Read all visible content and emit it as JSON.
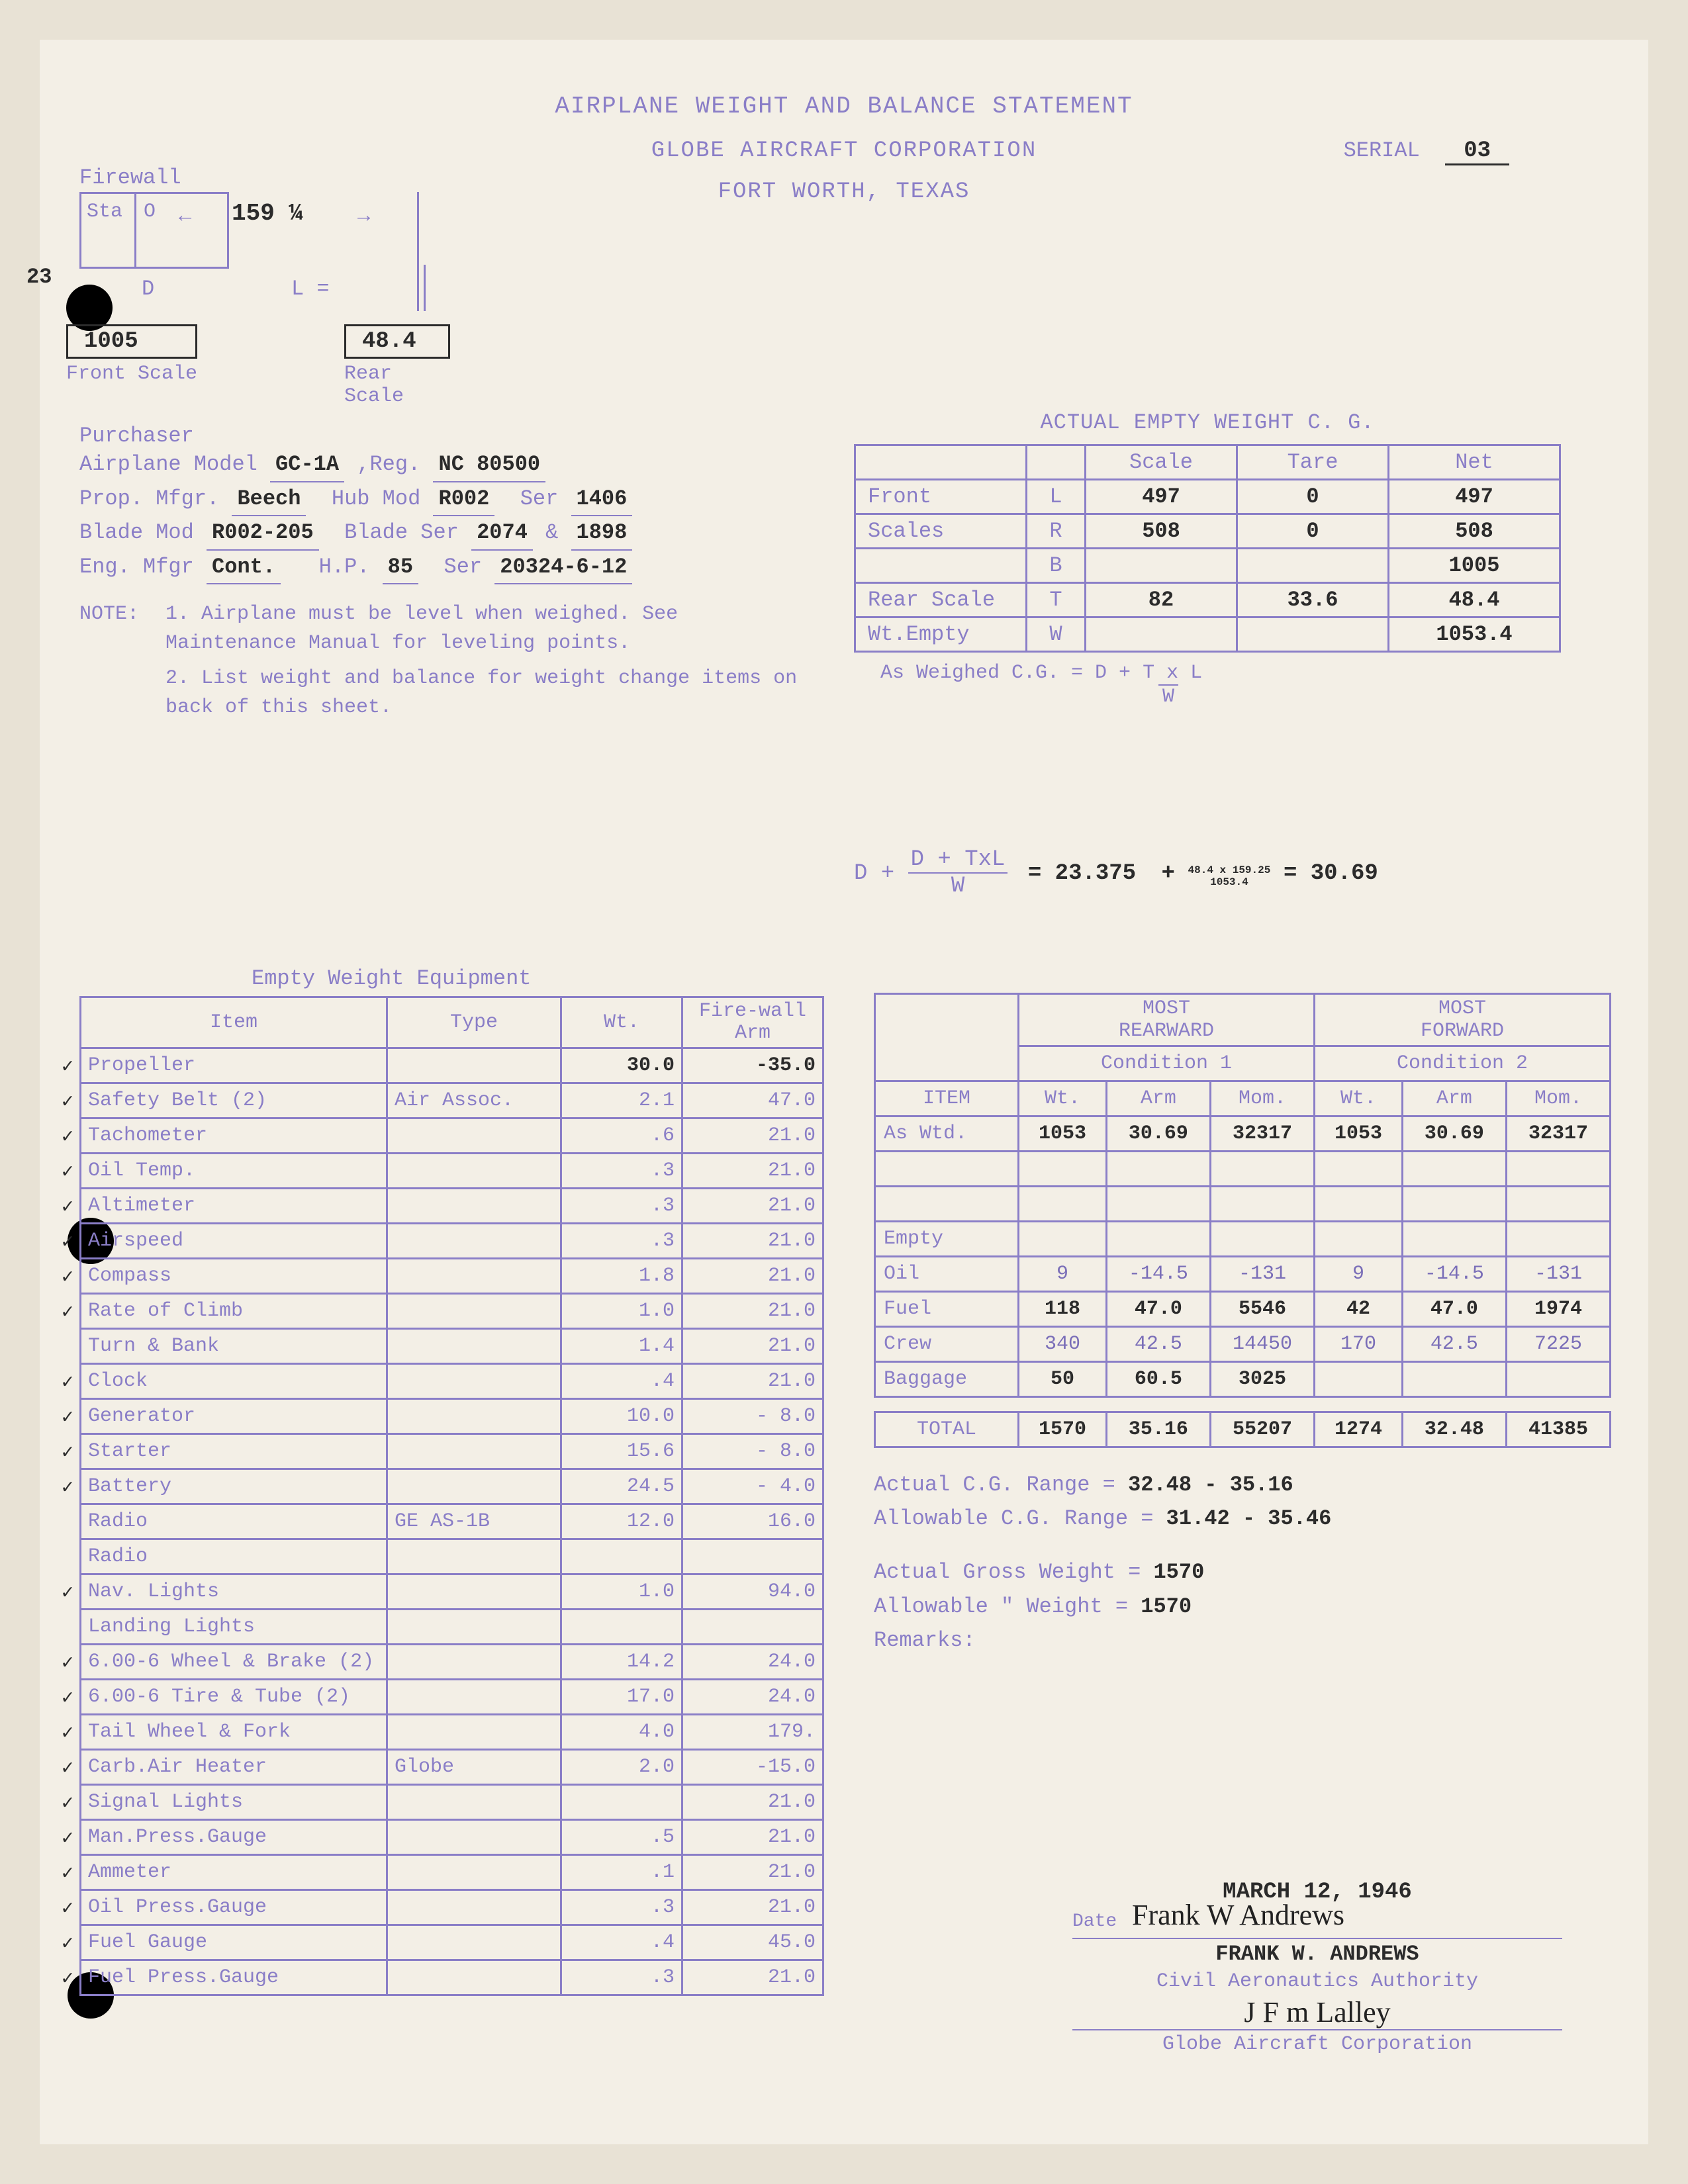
{
  "colors": {
    "paper": "#f3efe6",
    "bg": "#e8e2d5",
    "mimeo": "#8a7ec7",
    "typed": "#2b2b2b",
    "table_border": "#8a7ec7"
  },
  "typography": {
    "body_fontsize": 32,
    "title_fontsize": 36
  },
  "header": {
    "title": "AIRPLANE WEIGHT AND BALANCE STATEMENT",
    "company": "GLOBE AIRCRAFT CORPORATION",
    "location": "FORT WORTH, TEXAS",
    "serial_label": "SERIAL",
    "serial": "03"
  },
  "diagram": {
    "firewall": "Firewall",
    "sta_label": "Sta",
    "sta_o": "O",
    "d_label": "D",
    "l_label": "L =",
    "arrow_val": "159 ¼",
    "front_scale_label": "Front Scale",
    "front_scale": "1005",
    "rear_scale_label": "Rear Scale",
    "rear_scale": "48.4",
    "twentythree": "23"
  },
  "purchaser": {
    "purchaser_label": "Purchaser",
    "model_label": "Airplane Model",
    "model": "GC-1A",
    "reg_label": ",Reg.",
    "reg": "NC 80500",
    "prop_mfgr_label": "Prop. Mfgr.",
    "prop_mfgr": "Beech",
    "hub_mod_label": "Hub Mod",
    "hub_mod": "R002",
    "ser_label": "Ser",
    "prop_ser": "1406",
    "blade_mod_label": "Blade Mod",
    "blade_mod": "R002-205",
    "blade_ser_label": "Blade Ser",
    "blade_ser1": "2074",
    "blade_amp": "&",
    "blade_ser2": "1898",
    "eng_mfgr_label": "Eng. Mfgr",
    "eng_mfgr": "Cont.",
    "hp_label": "H.P.",
    "hp": "85",
    "eng_ser_label": "Ser",
    "eng_ser": "20324-6-12"
  },
  "notes": {
    "note_label": "NOTE:",
    "n1": "1.  Airplane must be level when weighed. See Maintenance Manual for leveling points.",
    "n2": "2.  List weight and balance for weight change items on back of this sheet."
  },
  "cg_table": {
    "title": "ACTUAL EMPTY WEIGHT C. G.",
    "col_scale": "Scale",
    "col_tare": "Tare",
    "col_net": "Net",
    "rows": [
      {
        "label": "Front",
        "side": "L",
        "scale": "497",
        "tare": "0",
        "net": "497"
      },
      {
        "label": "Scales",
        "side": "R",
        "scale": "508",
        "tare": "0",
        "net": "508"
      },
      {
        "label": "",
        "side": "B",
        "scale": "",
        "tare": "",
        "net": "1005"
      },
      {
        "label": "Rear Scale",
        "side": "T",
        "scale": "82",
        "tare": "33.6",
        "net": "48.4"
      },
      {
        "label": "Wt.Empty",
        "side": "W",
        "scale": "",
        "tare": "",
        "net": "1053.4"
      }
    ],
    "formula_label": "As Weighed C.G.  =  D + T x L",
    "formula_denom": "W"
  },
  "computation": {
    "lhs": "D + TxL",
    "lhs_denom": "W",
    "eq1": "= 23.375",
    "plus": "+",
    "num": "48.4 x 159.25",
    "den": "1053.4",
    "eq2": "= 30.69"
  },
  "equipment": {
    "title": "Empty Weight Equipment",
    "col_item": "Item",
    "col_type": "Type",
    "col_wt": "Wt.",
    "col_arm": "Fire-wall Arm",
    "rows": [
      {
        "c": true,
        "item": "Propeller",
        "type": "",
        "wt": "30.0",
        "arm": "-35.0",
        "typed": true
      },
      {
        "c": true,
        "item": "Safety Belt (2)",
        "type": "Air Assoc.",
        "wt": "2.1",
        "arm": "47.0"
      },
      {
        "c": true,
        "item": "Tachometer",
        "type": "",
        "wt": ".6",
        "arm": "21.0"
      },
      {
        "c": true,
        "item": "Oil Temp.",
        "type": "",
        "wt": ".3",
        "arm": "21.0"
      },
      {
        "c": true,
        "item": "Altimeter",
        "type": "",
        "wt": ".3",
        "arm": "21.0"
      },
      {
        "c": true,
        "item": "Airspeed",
        "type": "",
        "wt": ".3",
        "arm": "21.0"
      },
      {
        "c": true,
        "item": "Compass",
        "type": "",
        "wt": "1.8",
        "arm": "21.0"
      },
      {
        "c": true,
        "item": "Rate of Climb",
        "type": "",
        "wt": "1.0",
        "arm": "21.0"
      },
      {
        "c": false,
        "item": "Turn & Bank",
        "type": "",
        "wt": "1.4",
        "arm": "21.0"
      },
      {
        "c": true,
        "item": "Clock",
        "type": "",
        "wt": ".4",
        "arm": "21.0"
      },
      {
        "c": true,
        "item": "Generator",
        "type": "",
        "wt": "10.0",
        "arm": "- 8.0"
      },
      {
        "c": true,
        "item": "Starter",
        "type": "",
        "wt": "15.6",
        "arm": "- 8.0"
      },
      {
        "c": true,
        "item": "Battery",
        "type": "",
        "wt": "24.5",
        "arm": "- 4.0"
      },
      {
        "c": false,
        "item": "Radio",
        "type": "GE AS-1B",
        "wt": "12.0",
        "arm": "16.0"
      },
      {
        "c": false,
        "item": "Radio",
        "type": "",
        "wt": "",
        "arm": ""
      },
      {
        "c": true,
        "item": "Nav. Lights",
        "type": "",
        "wt": "1.0",
        "arm": "94.0"
      },
      {
        "c": false,
        "item": "Landing Lights",
        "type": "",
        "wt": "",
        "arm": ""
      },
      {
        "c": true,
        "item": "6.00-6 Wheel & Brake (2)",
        "type": "",
        "wt": "14.2",
        "arm": "24.0"
      },
      {
        "c": true,
        "item": "6.00-6 Tire & Tube (2)",
        "type": "",
        "wt": "17.0",
        "arm": "24.0"
      },
      {
        "c": true,
        "item": "Tail Wheel & Fork",
        "type": "",
        "wt": "4.0",
        "arm": "179."
      },
      {
        "c": true,
        "item": "Carb.Air Heater",
        "type": "Globe",
        "wt": "2.0",
        "arm": "-15.0"
      },
      {
        "c": true,
        "item": "Signal Lights",
        "type": "",
        "wt": "",
        "arm": "21.0"
      },
      {
        "c": true,
        "item": "Man.Press.Gauge",
        "type": "",
        "wt": ".5",
        "arm": "21.0"
      },
      {
        "c": true,
        "item": "Ammeter",
        "type": "",
        "wt": ".1",
        "arm": "21.0"
      },
      {
        "c": true,
        "item": "Oil Press.Gauge",
        "type": "",
        "wt": ".3",
        "arm": "21.0"
      },
      {
        "c": true,
        "item": "Fuel Gauge",
        "type": "",
        "wt": ".4",
        "arm": "45.0"
      },
      {
        "c": true,
        "item": "Fuel Press.Gauge",
        "type": "",
        "wt": ".3",
        "arm": "21.0"
      }
    ]
  },
  "conditions": {
    "most_rear": "MOST",
    "rearward": "REARWARD",
    "most_fwd": "MOST",
    "forward": "FORWARD",
    "item_label": "ITEM",
    "cond1": "Condition 1",
    "cond2": "Condition 2",
    "wt": "Wt.",
    "arm": "Arm",
    "mom": "Mom.",
    "rows": [
      {
        "label": "As Wtd.",
        "w1": "1053",
        "a1": "30.69",
        "m1": "32317",
        "w2": "1053",
        "a2": "30.69",
        "m2": "32317",
        "t": true
      },
      {
        "label": "",
        "w1": "",
        "a1": "",
        "m1": "",
        "w2": "",
        "a2": "",
        "m2": ""
      },
      {
        "label": "",
        "w1": "",
        "a1": "",
        "m1": "",
        "w2": "",
        "a2": "",
        "m2": ""
      },
      {
        "label": "Empty",
        "w1": "",
        "a1": "",
        "m1": "",
        "w2": "",
        "a2": "",
        "m2": ""
      },
      {
        "label": "Oil",
        "w1": "9",
        "a1": "-14.5",
        "m1": "-131",
        "w2": "9",
        "a2": "-14.5",
        "m2": "-131"
      },
      {
        "label": "Fuel",
        "w1": "118",
        "a1": "47.0",
        "m1": "5546",
        "w2": "42",
        "a2": "47.0",
        "m2": "1974",
        "t": true
      },
      {
        "label": "Crew",
        "w1": "340",
        "a1": "42.5",
        "m1": "14450",
        "w2": "170",
        "a2": "42.5",
        "m2": "7225"
      },
      {
        "label": "Baggage",
        "w1": "50",
        "a1": "60.5",
        "m1": "3025",
        "w2": "",
        "a2": "",
        "m2": "",
        "t": true
      }
    ],
    "total_label": "TOTAL",
    "total": {
      "w1": "1570",
      "a1": "35.16",
      "m1": "55207",
      "w2": "1274",
      "a2": "32.48",
      "m2": "41385"
    }
  },
  "results": {
    "actual_cg_label": "Actual C.G. Range   =",
    "actual_cg": "32.48 - 35.16",
    "allowable_cg_label": "Allowable C.G. Range =",
    "allowable_cg": "31.42 - 35.46",
    "actual_gw_label": "Actual Gross Weight   =",
    "actual_gw": "1570",
    "allowable_gw_label": "Allowable \"  Weight   =",
    "allowable_gw": "1570",
    "remarks_label": "Remarks:"
  },
  "signature": {
    "date": "MARCH 12, 1946",
    "date_label": "Date",
    "signer_script": "Frank W Andrews",
    "signer_typed": "FRANK W. ANDREWS",
    "authority": "Civil Aeronautics Authority",
    "corp_sig": "J F m Lalley",
    "corp": "Globe Aircraft Corporation"
  }
}
